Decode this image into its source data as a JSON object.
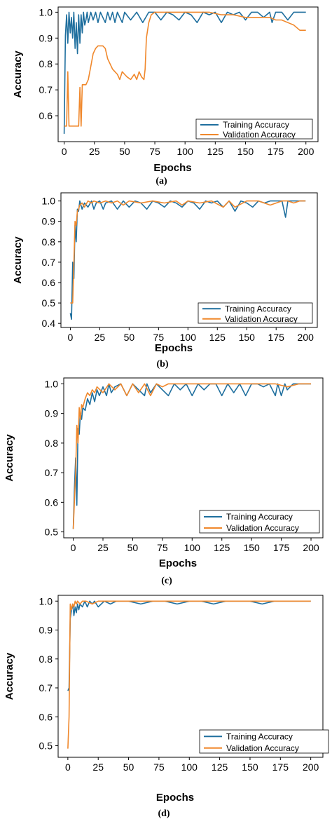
{
  "colors": {
    "training": "#1f6f9e",
    "validation": "#f0882c"
  },
  "chart_data": [
    {
      "id": "a",
      "type": "line",
      "caption": "(a)",
      "xlabel": "Epochs",
      "ylabel": "Accuracy",
      "xlim": [
        -5,
        210
      ],
      "ylim": [
        0.5,
        1.02
      ],
      "xticks": [
        0,
        25,
        50,
        75,
        100,
        125,
        150,
        175,
        200
      ],
      "yticks": [
        0.6,
        0.7,
        0.8,
        0.9,
        1.0
      ],
      "ytick_labels": [
        "0.6",
        "0.7",
        "0.8",
        "0.9",
        "1.0"
      ],
      "legend_position": "lower-right",
      "series": [
        {
          "name": "Training Accuracy",
          "color_key": "training",
          "x": [
            0,
            1,
            2,
            3,
            4,
            5,
            6,
            7,
            8,
            9,
            10,
            11,
            12,
            13,
            14,
            15,
            16,
            17,
            18,
            19,
            20,
            22,
            24,
            26,
            28,
            30,
            32,
            34,
            36,
            38,
            40,
            42,
            44,
            46,
            48,
            50,
            55,
            60,
            65,
            70,
            75,
            80,
            85,
            90,
            95,
            100,
            105,
            110,
            115,
            120,
            125,
            130,
            135,
            140,
            145,
            150,
            155,
            160,
            165,
            170,
            172,
            175,
            180,
            185,
            190,
            195,
            200
          ],
          "y": [
            0.53,
            0.91,
            0.99,
            0.88,
            1.0,
            0.92,
            0.98,
            0.9,
            1.0,
            0.86,
            0.96,
            0.84,
            0.99,
            0.88,
            0.99,
            0.92,
            1.0,
            0.95,
            0.97,
            1.0,
            0.96,
            1.0,
            0.97,
            1.0,
            0.96,
            1.0,
            0.98,
            0.96,
            1.0,
            0.97,
            1.0,
            0.96,
            1.0,
            0.98,
            0.96,
            1.0,
            0.97,
            1.0,
            0.96,
            1.0,
            1.0,
            0.97,
            1.0,
            0.99,
            0.97,
            1.0,
            0.99,
            0.96,
            1.0,
            0.99,
            1.0,
            0.96,
            1.0,
            0.99,
            1.0,
            0.97,
            1.0,
            1.0,
            0.98,
            1.0,
            0.96,
            1.0,
            1.0,
            0.97,
            1.0,
            1.0,
            1.0
          ]
        },
        {
          "name": "Validation Accuracy",
          "color_key": "validation",
          "x": [
            0,
            2,
            3,
            4,
            5,
            6,
            8,
            10,
            12,
            13,
            14,
            15,
            16,
            18,
            20,
            22,
            24,
            26,
            28,
            30,
            32,
            34,
            36,
            38,
            40,
            42,
            44,
            46,
            48,
            50,
            52,
            55,
            58,
            60,
            62,
            64,
            66,
            67,
            68,
            70,
            72,
            75,
            80,
            90,
            100,
            110,
            120,
            130,
            140,
            150,
            160,
            170,
            175,
            180,
            185,
            190,
            195,
            200
          ],
          "y": [
            0.56,
            0.56,
            0.77,
            0.56,
            0.56,
            0.56,
            0.56,
            0.56,
            0.56,
            0.71,
            0.56,
            0.72,
            0.72,
            0.72,
            0.74,
            0.79,
            0.84,
            0.86,
            0.87,
            0.87,
            0.87,
            0.86,
            0.82,
            0.8,
            0.78,
            0.77,
            0.76,
            0.74,
            0.77,
            0.76,
            0.75,
            0.74,
            0.76,
            0.74,
            0.77,
            0.75,
            0.74,
            0.78,
            0.9,
            0.96,
            0.99,
            1.0,
            1.0,
            1.0,
            1.0,
            1.0,
            1.0,
            0.99,
            0.99,
            0.98,
            0.98,
            0.98,
            0.97,
            0.97,
            0.96,
            0.95,
            0.93,
            0.93
          ]
        }
      ]
    },
    {
      "id": "b",
      "type": "line",
      "caption": "(b)",
      "xlabel": "Epochs",
      "ylabel": "Accuracy",
      "xlim": [
        -8,
        210
      ],
      "ylim": [
        0.38,
        1.04
      ],
      "xticks": [
        0,
        25,
        50,
        75,
        100,
        125,
        150,
        175,
        200
      ],
      "yticks": [
        0.4,
        0.5,
        0.6,
        0.7,
        0.8,
        0.9,
        1.0
      ],
      "ytick_labels": [
        "0.4",
        "0.5",
        "0.6",
        "0.7",
        "0.8",
        "0.9",
        "1.0"
      ],
      "legend_position": "lower-right",
      "series": [
        {
          "name": "Training Accuracy",
          "color_key": "training",
          "x": [
            0,
            1,
            2,
            3,
            4,
            5,
            6,
            7,
            8,
            10,
            12,
            15,
            18,
            20,
            22,
            25,
            28,
            30,
            35,
            40,
            45,
            50,
            55,
            60,
            65,
            70,
            75,
            80,
            85,
            90,
            95,
            100,
            105,
            110,
            115,
            120,
            125,
            130,
            135,
            140,
            145,
            150,
            155,
            160,
            165,
            170,
            175,
            180,
            183,
            185,
            190,
            195,
            200
          ],
          "y": [
            0.45,
            0.42,
            0.7,
            0.62,
            0.88,
            0.8,
            0.96,
            0.95,
            1.0,
            0.96,
            0.99,
            0.97,
            1.0,
            0.96,
            0.99,
            1.0,
            0.96,
            0.99,
            1.0,
            0.96,
            1.0,
            0.97,
            1.0,
            0.99,
            0.96,
            1.0,
            0.99,
            0.97,
            1.0,
            0.99,
            0.97,
            1.0,
            0.99,
            0.96,
            1.0,
            0.99,
            1.0,
            0.97,
            1.0,
            0.95,
            1.0,
            0.99,
            0.97,
            1.0,
            0.99,
            1.0,
            1.0,
            1.0,
            0.92,
            1.0,
            1.0,
            1.0,
            1.0
          ]
        },
        {
          "name": "Validation Accuracy",
          "color_key": "validation",
          "x": [
            0,
            2,
            3,
            4,
            5,
            6,
            7,
            8,
            10,
            12,
            15,
            18,
            20,
            25,
            30,
            35,
            40,
            45,
            50,
            60,
            70,
            80,
            90,
            95,
            100,
            110,
            120,
            130,
            135,
            140,
            150,
            160,
            170,
            180,
            185,
            190,
            195,
            200
          ],
          "y": [
            0.5,
            0.5,
            0.7,
            0.9,
            0.88,
            0.95,
            0.96,
            0.98,
            0.99,
            0.97,
            1.0,
            0.99,
            1.0,
            0.99,
            1.0,
            0.99,
            1.0,
            0.98,
            1.0,
            0.99,
            1.0,
            0.99,
            1.0,
            0.98,
            1.0,
            0.99,
            1.0,
            0.97,
            1.0,
            0.97,
            1.0,
            1.0,
            0.98,
            1.0,
            1.0,
            0.99,
            1.0,
            1.0
          ]
        }
      ]
    },
    {
      "id": "c",
      "type": "line",
      "caption": "(c)",
      "xlabel": "Epochs",
      "ylabel": "Accuracy",
      "xlim": [
        -8,
        210
      ],
      "ylim": [
        0.48,
        1.02
      ],
      "xticks": [
        0,
        25,
        50,
        75,
        100,
        125,
        150,
        175,
        200
      ],
      "yticks": [
        0.5,
        0.6,
        0.7,
        0.8,
        0.9,
        1.0
      ],
      "ytick_labels": [
        "0.5",
        "0.6",
        "0.7",
        "0.8",
        "0.9",
        "1.0"
      ],
      "legend_position": "lower-right",
      "series": [
        {
          "name": "Training Accuracy",
          "color_key": "training",
          "x": [
            0,
            1,
            2,
            3,
            4,
            5,
            6,
            7,
            8,
            10,
            12,
            14,
            16,
            18,
            20,
            22,
            25,
            28,
            30,
            32,
            35,
            40,
            45,
            50,
            55,
            60,
            62,
            65,
            70,
            75,
            80,
            85,
            90,
            95,
            100,
            105,
            110,
            115,
            120,
            125,
            130,
            135,
            140,
            145,
            150,
            155,
            160,
            165,
            170,
            172,
            175,
            178,
            180,
            185,
            190,
            195,
            200
          ],
          "y": [
            0.51,
            0.65,
            0.75,
            0.59,
            0.85,
            0.83,
            0.9,
            0.88,
            0.92,
            0.91,
            0.95,
            0.93,
            0.97,
            0.94,
            0.98,
            0.96,
            0.99,
            0.96,
            1.0,
            0.97,
            0.99,
            1.0,
            0.96,
            1.0,
            0.98,
            0.96,
            1.0,
            0.97,
            1.0,
            0.98,
            0.96,
            1.0,
            0.98,
            1.0,
            0.96,
            1.0,
            0.98,
            1.0,
            1.0,
            0.96,
            1.0,
            0.97,
            1.0,
            0.96,
            1.0,
            1.0,
            0.99,
            1.0,
            0.96,
            1.0,
            0.96,
            1.0,
            0.98,
            1.0,
            1.0,
            1.0,
            1.0
          ]
        },
        {
          "name": "Validation Accuracy",
          "color_key": "validation",
          "x": [
            0,
            2,
            3,
            4,
            5,
            6,
            7,
            8,
            10,
            12,
            14,
            16,
            18,
            20,
            25,
            30,
            35,
            40,
            45,
            50,
            55,
            60,
            65,
            70,
            75,
            80,
            90,
            100,
            110,
            120,
            130,
            140,
            150,
            160,
            170,
            180,
            190,
            200
          ],
          "y": [
            0.51,
            0.7,
            0.86,
            0.8,
            0.92,
            0.88,
            0.93,
            0.92,
            0.95,
            0.97,
            0.96,
            0.98,
            0.97,
            0.99,
            0.97,
            1.0,
            0.98,
            1.0,
            0.96,
            1.0,
            0.97,
            1.0,
            0.96,
            1.0,
            0.99,
            1.0,
            1.0,
            1.0,
            1.0,
            1.0,
            1.0,
            1.0,
            1.0,
            1.0,
            1.0,
            0.99,
            1.0,
            1.0
          ]
        }
      ]
    },
    {
      "id": "d",
      "type": "line",
      "caption": "(d)",
      "xlabel": "Epochs",
      "ylabel": "Accuracy",
      "xlim": [
        -8,
        210
      ],
      "ylim": [
        0.46,
        1.02
      ],
      "xticks": [
        0,
        25,
        50,
        75,
        100,
        125,
        150,
        175,
        200
      ],
      "yticks": [
        0.5,
        0.6,
        0.7,
        0.8,
        0.9,
        1.0
      ],
      "ytick_labels": [
        "0.5",
        "0.6",
        "0.7",
        "0.8",
        "0.9",
        "1.0"
      ],
      "legend_position": "lower-right",
      "series": [
        {
          "name": "Training Accuracy",
          "color_key": "training",
          "x": [
            0,
            1,
            2,
            3,
            4,
            5,
            6,
            7,
            8,
            9,
            10,
            12,
            14,
            16,
            18,
            20,
            22,
            25,
            30,
            35,
            40,
            50,
            60,
            70,
            80,
            90,
            100,
            110,
            120,
            130,
            140,
            150,
            160,
            170,
            180,
            190,
            200
          ],
          "y": [
            0.69,
            0.7,
            0.94,
            0.97,
            0.99,
            0.95,
            0.98,
            0.96,
            0.99,
            0.97,
            0.99,
            0.98,
            1.0,
            0.98,
            1.0,
            0.99,
            1.0,
            0.98,
            1.0,
            0.99,
            1.0,
            1.0,
            0.99,
            1.0,
            1.0,
            0.99,
            1.0,
            1.0,
            0.99,
            1.0,
            1.0,
            1.0,
            0.99,
            1.0,
            1.0,
            1.0,
            1.0
          ]
        },
        {
          "name": "Validation Accuracy",
          "color_key": "validation",
          "x": [
            0,
            1,
            2,
            3,
            4,
            5,
            6,
            7,
            8,
            10,
            12,
            15,
            20,
            25,
            30,
            40,
            50,
            60,
            70,
            80,
            90,
            100,
            110,
            120,
            130,
            140,
            150,
            160,
            170,
            180,
            190,
            200
          ],
          "y": [
            0.49,
            0.6,
            0.99,
            0.97,
            0.99,
            0.98,
            1.0,
            0.99,
            1.0,
            0.99,
            1.0,
            1.0,
            0.99,
            1.0,
            1.0,
            1.0,
            1.0,
            1.0,
            1.0,
            1.0,
            1.0,
            1.0,
            1.0,
            1.0,
            1.0,
            1.0,
            1.0,
            1.0,
            1.0,
            1.0,
            1.0,
            1.0
          ]
        }
      ]
    }
  ]
}
